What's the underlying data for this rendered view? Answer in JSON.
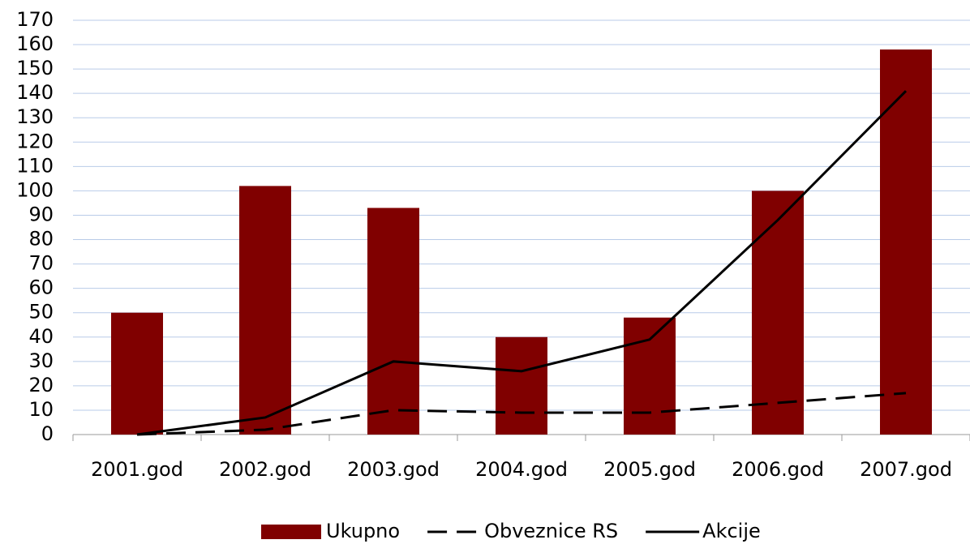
{
  "chart_data": {
    "type": "bar_line",
    "categories": [
      "2001.god",
      "2002.god",
      "2003.god",
      "2004.god",
      "2005.god",
      "2006.god",
      "2007.god"
    ],
    "series": [
      {
        "name": "Ukupno",
        "type": "bar",
        "color": "#800000",
        "values": [
          50,
          102,
          93,
          40,
          48,
          100,
          158
        ]
      },
      {
        "name": "Obveznice RS",
        "type": "line",
        "dash": true,
        "color": "#000000",
        "values": [
          0,
          2,
          10,
          9,
          9,
          13,
          17
        ]
      },
      {
        "name": "Akcije",
        "type": "line",
        "dash": false,
        "color": "#000000",
        "values": [
          0,
          7,
          30,
          26,
          39,
          88,
          141
        ]
      }
    ],
    "ylim": [
      0,
      170
    ],
    "yticks": [
      0,
      10,
      20,
      30,
      40,
      50,
      60,
      70,
      80,
      90,
      100,
      110,
      120,
      130,
      140,
      150,
      160,
      170
    ],
    "grid": true,
    "legend": "bottom"
  }
}
